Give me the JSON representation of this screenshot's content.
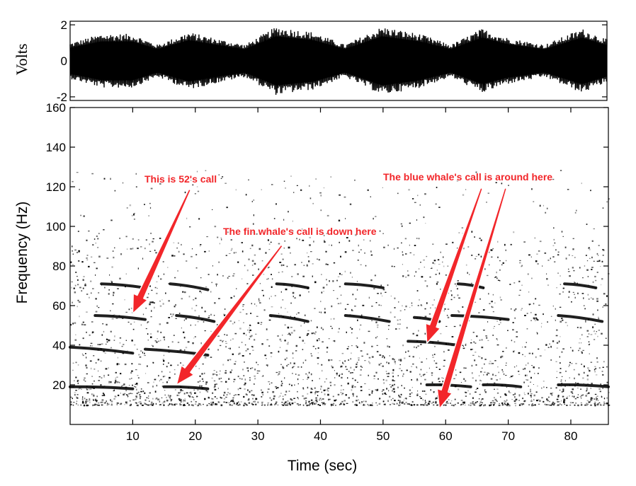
{
  "chart_data": [
    {
      "type": "line",
      "panel": "waveform",
      "ylabel": "Volts",
      "yticks": [
        2,
        0,
        -2
      ],
      "ylim": [
        -2.2,
        2.2
      ],
      "xlim": [
        0,
        86
      ],
      "envelope": {
        "x": [
          0,
          5,
          10,
          14,
          19,
          24,
          28,
          33,
          39,
          44,
          50,
          56,
          61,
          66,
          70,
          76,
          82,
          86
        ],
        "amplitude": [
          1.0,
          1.5,
          1.5,
          0.9,
          1.6,
          1.2,
          0.9,
          1.9,
          1.6,
          0.9,
          1.9,
          1.5,
          0.9,
          1.8,
          1.3,
          0.9,
          1.8,
          1.2
        ]
      },
      "grid": false
    },
    {
      "type": "heatmap",
      "panel": "spectrogram",
      "xlabel": "Time (sec)",
      "ylabel": "Frequency (Hz)",
      "xticks": [
        10,
        20,
        30,
        40,
        50,
        60,
        70,
        80
      ],
      "yticks": [
        20,
        40,
        60,
        80,
        100,
        120,
        140,
        160
      ],
      "xlim": [
        0,
        86
      ],
      "ylim": [
        0,
        160
      ],
      "grid": false,
      "calls": [
        {
          "x": [
            5,
            12
          ],
          "y": [
            71,
            69
          ]
        },
        {
          "x": [
            16,
            22
          ],
          "y": [
            71,
            68
          ]
        },
        {
          "x": [
            33,
            38
          ],
          "y": [
            71,
            69
          ]
        },
        {
          "x": [
            44,
            50
          ],
          "y": [
            71,
            69
          ]
        },
        {
          "x": [
            62,
            66
          ],
          "y": [
            71,
            69
          ]
        },
        {
          "x": [
            79,
            84
          ],
          "y": [
            71,
            69
          ]
        },
        {
          "x": [
            4,
            12
          ],
          "y": [
            55,
            53
          ]
        },
        {
          "x": [
            17,
            23
          ],
          "y": [
            55,
            52
          ]
        },
        {
          "x": [
            32,
            38
          ],
          "y": [
            55,
            52
          ]
        },
        {
          "x": [
            44,
            51
          ],
          "y": [
            55,
            52
          ]
        },
        {
          "x": [
            55,
            59
          ],
          "y": [
            54,
            52
          ]
        },
        {
          "x": [
            61,
            70
          ],
          "y": [
            55,
            53
          ]
        },
        {
          "x": [
            78,
            85
          ],
          "y": [
            55,
            52
          ]
        },
        {
          "x": [
            0,
            10
          ],
          "y": [
            39,
            36
          ]
        },
        {
          "x": [
            12,
            22
          ],
          "y": [
            38,
            35
          ]
        },
        {
          "x": [
            54,
            62
          ],
          "y": [
            42,
            40
          ]
        },
        {
          "x": [
            0,
            10
          ],
          "y": [
            19,
            18
          ]
        },
        {
          "x": [
            15,
            22
          ],
          "y": [
            19,
            18
          ]
        },
        {
          "x": [
            57,
            64
          ],
          "y": [
            20,
            19
          ]
        },
        {
          "x": [
            66,
            72
          ],
          "y": [
            20,
            19
          ]
        },
        {
          "x": [
            78,
            86
          ],
          "y": [
            20,
            19
          ]
        }
      ]
    }
  ],
  "annotations": [
    {
      "text": "This is 52's call",
      "color": "#f2262a",
      "arrow_to": {
        "x": 10,
        "y": 56
      }
    },
    {
      "text": "The fin whale's call is down here",
      "color": "#f2262a",
      "arrow_to": {
        "x": 17,
        "y": 20
      }
    },
    {
      "text": "The blue whale's call is around here",
      "color": "#f2262a",
      "arrow_to": [
        {
          "x": 57,
          "y": 41
        },
        {
          "x": 59,
          "y": 8
        }
      ]
    }
  ]
}
